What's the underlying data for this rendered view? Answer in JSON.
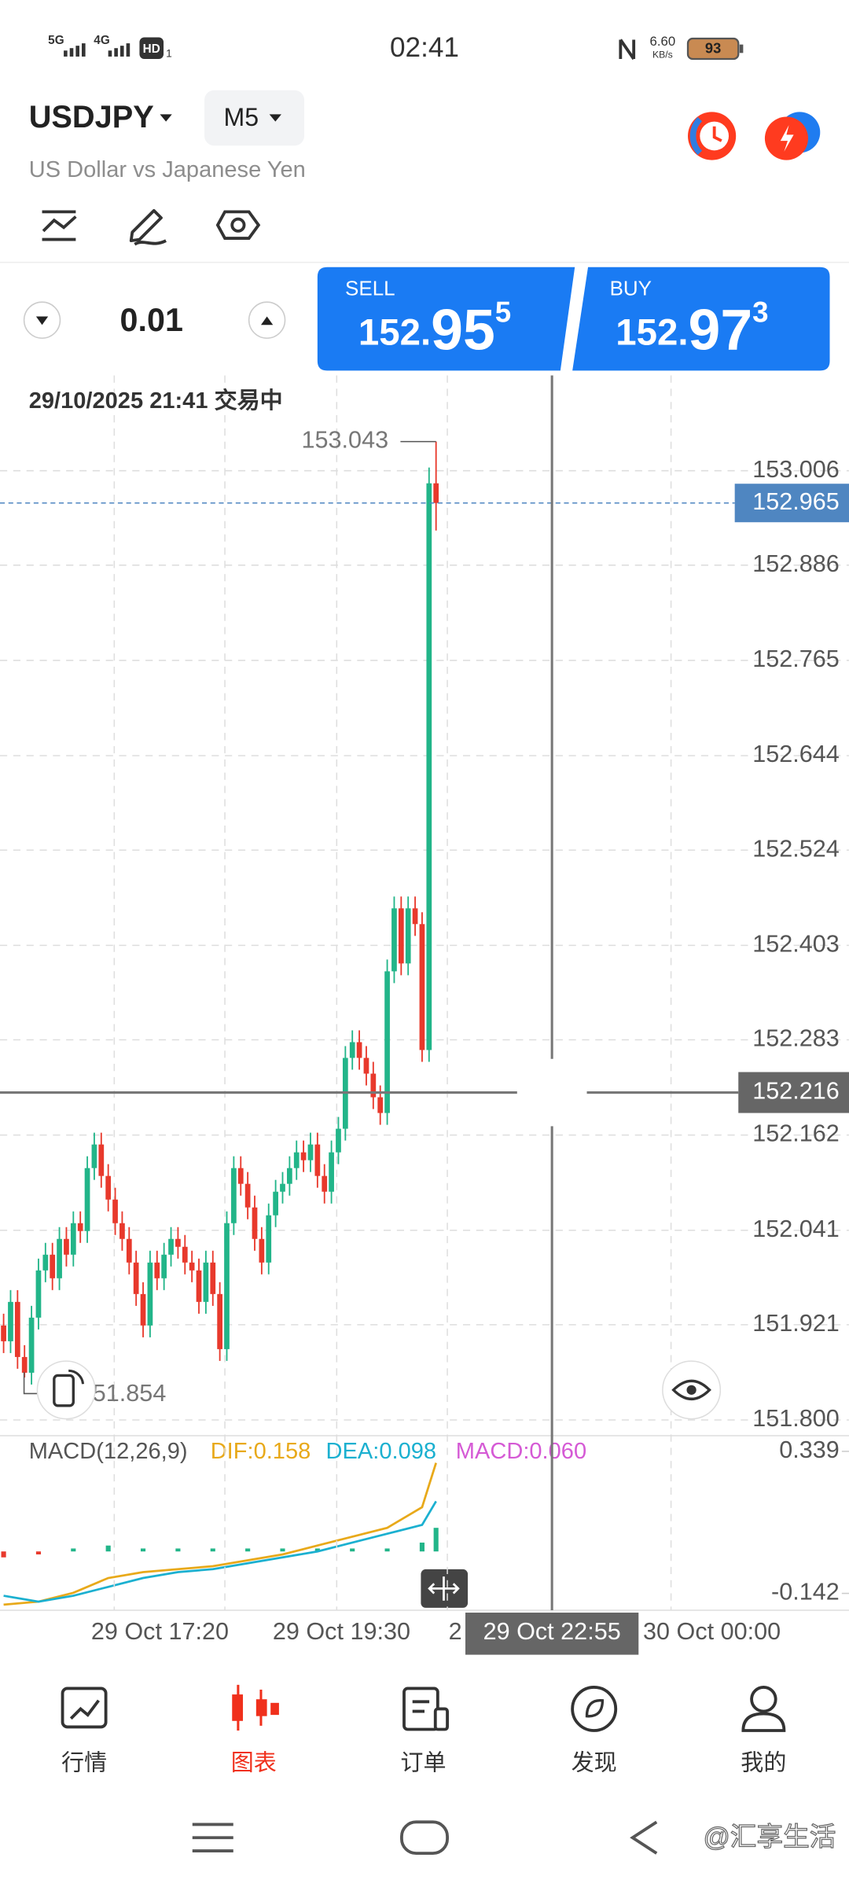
{
  "status_bar": {
    "network": [
      "5G",
      "4G"
    ],
    "hd": "HD",
    "sim": "1",
    "time": "02:41",
    "speed": "6.60",
    "speed_unit": "KB/s",
    "battery": "93"
  },
  "header": {
    "symbol": "USDJPY",
    "timeframe": "M5",
    "description": "US Dollar vs Japanese Yen"
  },
  "trade": {
    "volume": "0.01",
    "sell": {
      "label": "SELL",
      "price_main": "152.",
      "price_big": "95",
      "price_sup": "5"
    },
    "buy": {
      "label": "BUY",
      "price_main": "152.",
      "price_big": "97",
      "price_sup": "3"
    }
  },
  "chart_data": [
    {
      "type": "candlestick",
      "subtitle": "29/10/2025 21:41 交易中",
      "open": [
        151.92,
        151.9,
        151.95,
        151.88,
        151.86,
        151.93,
        151.99,
        152.01,
        151.98,
        152.03,
        152.01,
        152.05,
        152.04,
        152.12,
        152.15,
        152.11,
        152.08,
        152.05,
        152.03,
        152.0,
        151.96,
        151.92,
        152.0,
        151.98,
        152.01,
        152.03,
        152.02,
        152.0,
        151.99,
        151.95,
        152.0,
        151.96,
        151.89,
        152.05,
        152.12,
        152.1,
        152.07,
        152.03,
        152.0,
        152.06,
        152.09,
        152.1,
        152.12,
        152.14,
        152.13,
        152.15,
        152.11,
        152.09,
        152.14,
        152.17,
        152.26,
        152.28,
        152.26,
        152.24,
        152.21,
        152.19,
        152.37,
        152.45,
        152.38,
        152.45,
        152.43,
        152.27,
        152.99
      ],
      "high": [
        151.935,
        151.965,
        151.965,
        151.895,
        151.945,
        152.005,
        152.025,
        152.025,
        152.045,
        152.045,
        152.065,
        152.065,
        152.135,
        152.165,
        152.165,
        152.125,
        152.095,
        152.065,
        152.045,
        152.015,
        151.975,
        152.015,
        152.015,
        152.025,
        152.045,
        152.045,
        152.035,
        152.015,
        152.005,
        152.015,
        152.015,
        151.975,
        152.065,
        152.135,
        152.135,
        152.115,
        152.085,
        152.045,
        152.075,
        152.105,
        152.115,
        152.135,
        152.155,
        152.155,
        152.165,
        152.165,
        152.125,
        152.155,
        152.185,
        152.275,
        152.295,
        152.295,
        152.275,
        152.255,
        152.225,
        152.385,
        152.465,
        152.465,
        152.465,
        152.465,
        152.445,
        153.01,
        153.043
      ],
      "low": [
        151.885,
        151.885,
        151.865,
        151.854,
        151.845,
        151.915,
        151.975,
        151.965,
        151.965,
        151.995,
        151.995,
        152.025,
        152.025,
        152.105,
        152.095,
        152.065,
        152.035,
        152.015,
        151.985,
        151.945,
        151.905,
        151.905,
        151.965,
        151.965,
        151.995,
        152.005,
        151.985,
        151.975,
        151.935,
        151.935,
        151.945,
        151.875,
        151.875,
        152.035,
        152.085,
        152.055,
        152.015,
        151.985,
        151.985,
        152.045,
        152.075,
        152.085,
        152.105,
        152.115,
        152.115,
        152.095,
        152.075,
        152.075,
        152.125,
        152.155,
        152.245,
        152.245,
        152.225,
        152.195,
        152.175,
        152.175,
        152.355,
        152.365,
        152.365,
        152.415,
        152.255,
        152.255,
        152.93
      ],
      "close": [
        151.9,
        151.95,
        151.88,
        151.86,
        151.93,
        151.99,
        152.01,
        151.98,
        152.03,
        152.01,
        152.05,
        152.04,
        152.12,
        152.15,
        152.11,
        152.08,
        152.05,
        152.03,
        152.0,
        151.96,
        151.92,
        152.0,
        151.98,
        152.01,
        152.03,
        152.02,
        152.0,
        151.99,
        151.95,
        152.0,
        151.96,
        151.89,
        152.05,
        152.12,
        152.1,
        152.07,
        152.03,
        152.0,
        152.06,
        152.09,
        152.1,
        152.12,
        152.14,
        152.13,
        152.15,
        152.11,
        152.09,
        152.14,
        152.17,
        152.26,
        152.28,
        152.26,
        152.24,
        152.21,
        152.19,
        152.37,
        152.45,
        152.38,
        152.45,
        152.43,
        152.27,
        152.99,
        152.965
      ],
      "up_color": "#22b589",
      "down_color": "#e8392c",
      "ylim": [
        151.78,
        153.127
      ],
      "yticks": [
        153.006,
        152.886,
        152.765,
        152.644,
        152.524,
        152.403,
        152.283,
        152.162,
        152.041,
        151.921,
        {
          "value": 151.8,
          "label": "151.800"
        }
      ],
      "grid": true,
      "high_label": 153.043,
      "low_label": "51.854",
      "current_price": 152.965,
      "crosshair_price": 152.216,
      "crosshair_time": "29 Oct 22:55",
      "x_labels": [
        "29 Oct 17:20",
        "29 Oct 19:30",
        "2",
        "30 Oct 00:00"
      ]
    },
    {
      "type": "line",
      "title": "MACD(12,26,9)",
      "legend": [
        "DIF:0.158",
        "DEA:0.098",
        "MACD:0.060"
      ],
      "x": [
        0,
        5,
        10,
        15,
        20,
        25,
        30,
        35,
        40,
        45,
        50,
        55,
        60,
        62
      ],
      "series": [
        {
          "color": "#e8a91a",
          "values": [
            -0.18,
            -0.17,
            -0.14,
            -0.09,
            -0.07,
            -0.06,
            -0.05,
            -0.03,
            -0.01,
            0.02,
            0.05,
            0.08,
            0.15,
            0.3
          ]
        },
        {
          "color": "#1bb0d0",
          "values": [
            -0.15,
            -0.17,
            -0.15,
            -0.12,
            -0.09,
            -0.07,
            -0.06,
            -0.04,
            -0.02,
            0.0,
            0.03,
            0.06,
            0.09,
            0.17
          ]
        }
      ],
      "histogram": [
        -0.02,
        -0.01,
        0.01,
        0.02,
        0.01,
        0.01,
        0.01,
        0.01,
        0.01,
        0.01,
        0.01,
        0.01,
        0.03,
        0.08
      ],
      "histogram_color": "#d55ad5",
      "ylim": [
        -0.199,
        0.392
      ],
      "yticks": [
        0.339,
        -0.142
      ]
    }
  ],
  "nav": {
    "items": [
      "行情",
      "图表",
      "订单",
      "发现",
      "我的"
    ]
  },
  "watermark": "@汇享生活"
}
